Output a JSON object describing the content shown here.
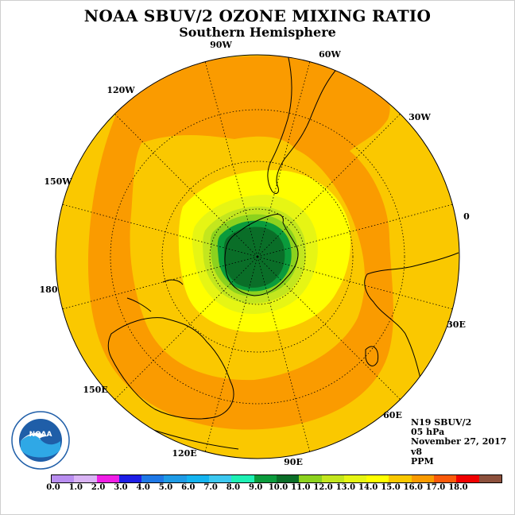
{
  "title": "NOAA SBUV/2 OZONE MIXING RATIO",
  "subtitle": "Southern Hemisphere",
  "longitude_labels": [
    {
      "text": "90W"
    },
    {
      "text": "60W"
    },
    {
      "text": "30W"
    },
    {
      "text": "0"
    },
    {
      "text": "30E"
    },
    {
      "text": "60E"
    },
    {
      "text": "90E"
    },
    {
      "text": "120E"
    },
    {
      "text": "150E"
    },
    {
      "text": "180"
    },
    {
      "text": "150W"
    },
    {
      "text": "120W"
    }
  ],
  "info": {
    "satellite": "N19 SBUV/2",
    "pressure": "05 hPa",
    "date": "November 27, 2017",
    "version": "v8",
    "units": "PPM"
  },
  "logo": {
    "text": "NOAA",
    "ring_text": "NATIONAL OCEANIC AND ATMOSPHERIC ADMINISTRATION · U.S. DEPARTMENT OF COMMERCE"
  },
  "colorbar": {
    "colors": [
      "#b98ef0",
      "#dab4f5",
      "#f01ee6",
      "#1e1ee6",
      "#1e78e6",
      "#1e9be6",
      "#14b4f0",
      "#3cc8f0",
      "#1ef0b4",
      "#0a9b3c",
      "#0a6e28",
      "#8cd21e",
      "#c3e61e",
      "#e6f514",
      "#ffff00",
      "#fac800",
      "#fa9b00",
      "#fa5a0a",
      "#f00000",
      "#8c503c"
    ],
    "ticks": [
      "0.0",
      "1.0",
      "2.0",
      "3.0",
      "4.0",
      "5.0",
      "6.0",
      "7.0",
      "8.0",
      "9.0",
      "10.0",
      "11.0",
      "12.0",
      "13.0",
      "14.0",
      "15.0",
      "16.0",
      "17.0",
      "18.0"
    ]
  },
  "map_colors": {
    "outer": "#fac800",
    "band": "#fa9b00",
    "c13": "#ffff00",
    "c12": "#e6f514",
    "c11": "#c3e61e",
    "c10": "#8cd21e",
    "c9": "#0a9b3c",
    "c8": "#0a6e28"
  }
}
